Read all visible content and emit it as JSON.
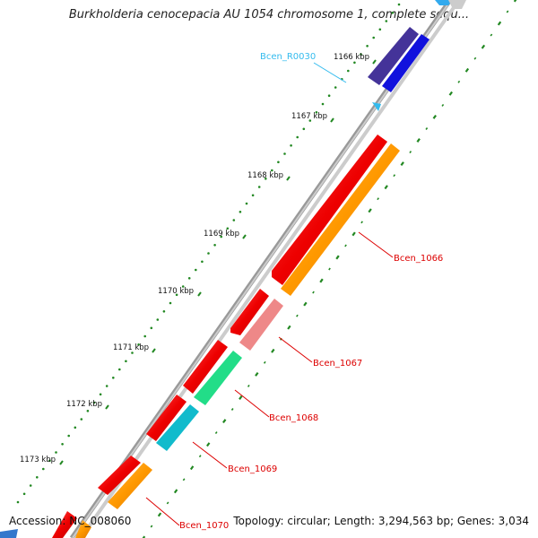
{
  "title": "Burkholderia cenocepacia AU 1054 chromosome 1, complete sequ...",
  "footer": {
    "accession": "Accession: NC_008060",
    "topology": "Topology: circular; Length: 3,294,563 bp; Genes: 3,034"
  },
  "ticks": [
    "1166 kbp",
    "1167 kbp",
    "1168 kbp",
    "1169 kbp",
    "1170 kbp",
    "1171 kbp",
    "1172 kbp",
    "1173 kbp"
  ],
  "genes": [
    {
      "label": "Bcen_R0030",
      "color": "#33bbee"
    },
    {
      "label": "Bcen_1066",
      "color": "#dd0000"
    },
    {
      "label": "Bcen_1067",
      "color": "#dd0000"
    },
    {
      "label": "Bcen_1068",
      "color": "#dd0000"
    },
    {
      "label": "Bcen_1069",
      "color": "#dd0000"
    },
    {
      "label": "Bcen_1070",
      "color": "#dd0000"
    }
  ],
  "colors": {
    "backbone": "#888888",
    "forward_strand": "#ee0000",
    "cog_orange": "#ff9900",
    "cog_pink": "#ee8888",
    "cog_green": "#22dd88",
    "cog_teal": "#11bbcc",
    "cog_blue": "#1111dd",
    "cog_indigo": "#443399",
    "tick_green": "#228822"
  }
}
